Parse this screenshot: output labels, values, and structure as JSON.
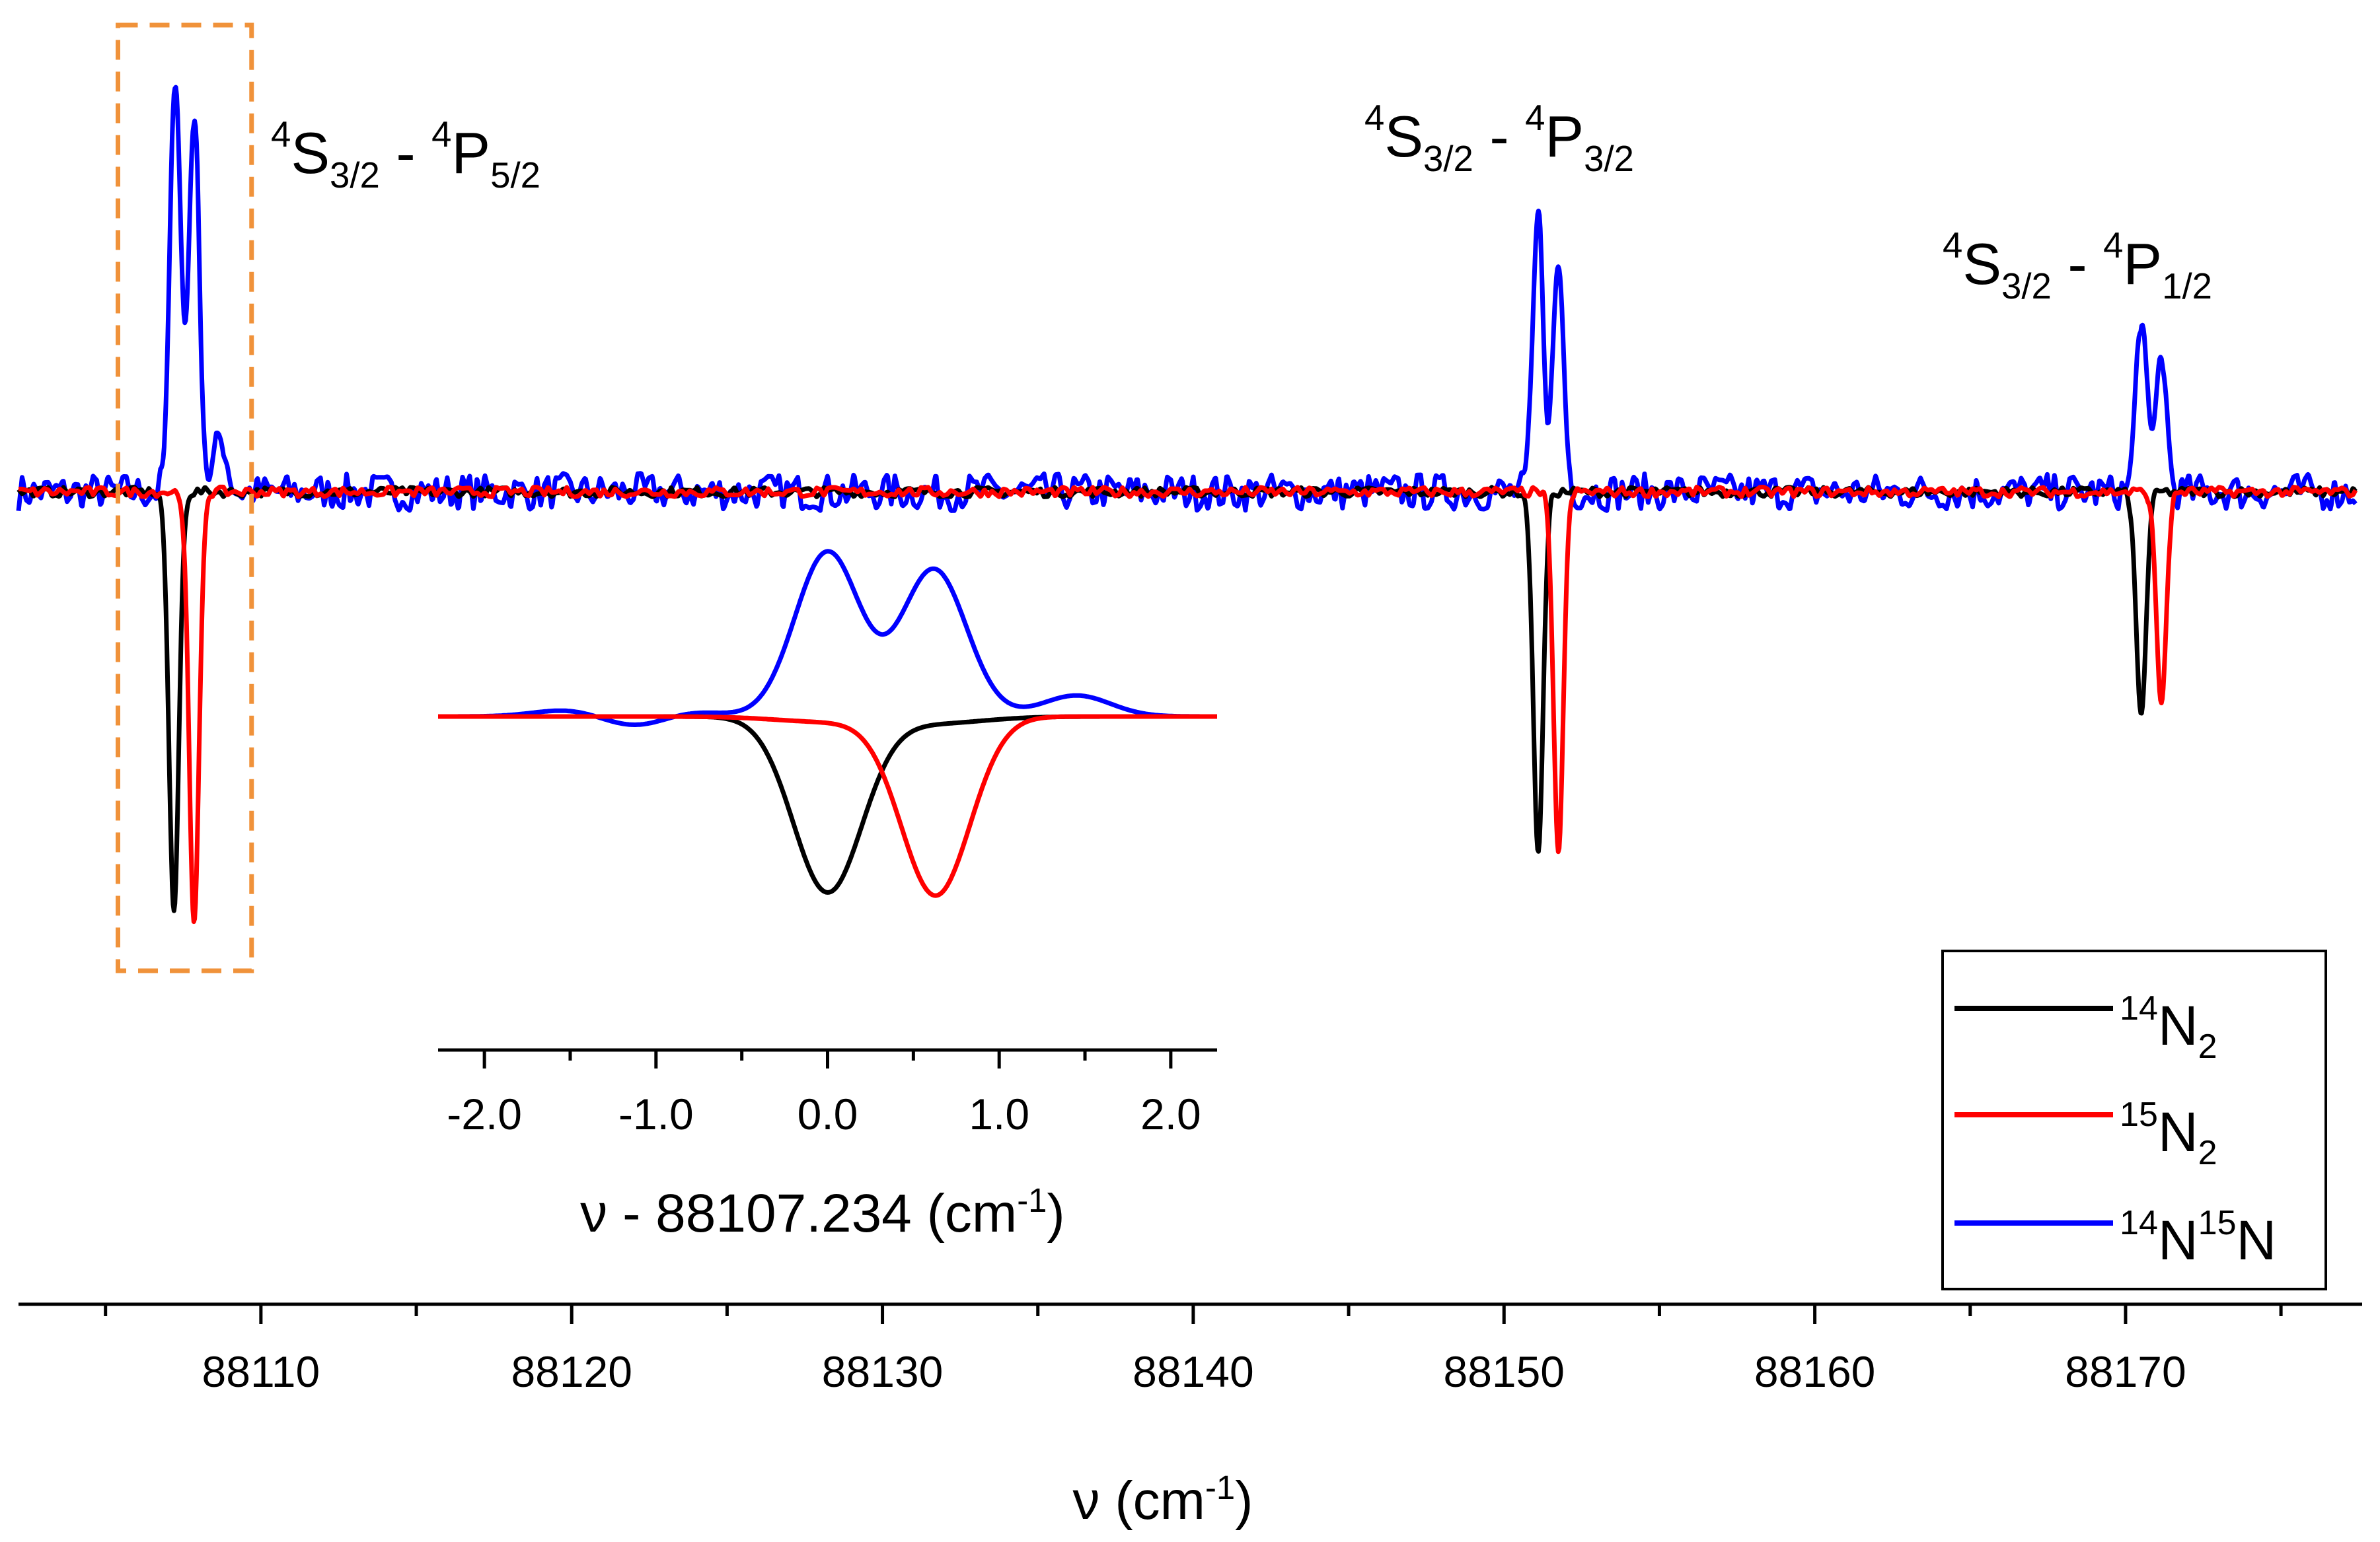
{
  "chart_data": {
    "type": "line",
    "title": "",
    "xlabel": "ν (cm⁻¹)",
    "xlabel_parts": {
      "main": "ν (cm",
      "sup": "-1",
      "close": ")"
    },
    "ylabel": "",
    "xlim": [
      88102.2,
      88177.4
    ],
    "ylim": [
      -1.0,
      1.0
    ],
    "x_ticks": [
      88110,
      88120,
      88130,
      88140,
      88150,
      88160,
      88170
    ],
    "x_tick_labels": [
      "88110",
      "88120",
      "88130",
      "88140",
      "88150",
      "88160",
      "88170"
    ],
    "x_minor_step": 5,
    "baseline": 0,
    "series": [
      {
        "name": "14N2",
        "color": "#000000",
        "peaks": [
          {
            "x": 88107.2,
            "amp": -1.0,
            "width": 0.16
          },
          {
            "x": 88151.1,
            "amp": -0.85,
            "width": 0.16
          },
          {
            "x": 88170.5,
            "amp": -0.53,
            "width": 0.16
          }
        ],
        "noise": 0.012
      },
      {
        "name": "15N2",
        "color": "#ff0000",
        "peaks": [
          {
            "x": 88107.85,
            "amp": -1.03,
            "width": 0.16
          },
          {
            "x": 88151.75,
            "amp": -0.85,
            "width": 0.16
          },
          {
            "x": 88171.15,
            "amp": -0.5,
            "width": 0.16
          }
        ],
        "noise": 0.012
      },
      {
        "name": "14N15N",
        "color": "#0000ff",
        "peaks": [
          {
            "x": 88107.25,
            "amp": 1.0,
            "width": 0.17
          },
          {
            "x": 88107.85,
            "amp": 0.9,
            "width": 0.17
          },
          {
            "x": 88108.7,
            "amp": 0.13,
            "width": 0.2
          },
          {
            "x": 88151.1,
            "amp": 0.65,
            "width": 0.17
          },
          {
            "x": 88151.75,
            "amp": 0.54,
            "width": 0.17
          },
          {
            "x": 88170.5,
            "amp": 0.42,
            "width": 0.17
          },
          {
            "x": 88171.15,
            "amp": 0.33,
            "width": 0.17
          }
        ],
        "noise": 0.045
      }
    ],
    "transitions": [
      {
        "main1": "S",
        "sub1": "3/2",
        "main2": "P",
        "sub2": "5/2",
        "pre": "4",
        "dash": " - "
      },
      {
        "main1": "S",
        "sub1": "3/2",
        "main2": "P",
        "sub2": "3/2",
        "pre": "4",
        "dash": " - "
      },
      {
        "main1": "S",
        "sub1": "3/2",
        "main2": "P",
        "sub2": "1/2",
        "pre": "4",
        "dash": " - "
      }
    ],
    "legend": [
      {
        "sup1": "14",
        "main1": "N",
        "sub1": "2",
        "sup2": "",
        "main2": "",
        "color": "#000000"
      },
      {
        "sup1": "15",
        "main1": "N",
        "sub1": "2",
        "sup2": "",
        "main2": "",
        "color": "#ff0000"
      },
      {
        "sup1": "14",
        "main1": "N",
        "sub1": "",
        "sup2": "15",
        "main2": "N",
        "color": "#0000ff"
      }
    ],
    "legend_position": "bottom-right",
    "highlight_box": {
      "x_range": [
        88105.4,
        88109.7
      ],
      "color": "#f0923a",
      "style": "dashed"
    },
    "inset": {
      "type": "line",
      "xlabel_parts": {
        "main": "ν - 88107.234 (cm",
        "sup": "-1",
        "close": ")"
      },
      "xlim": [
        -2.27,
        2.27
      ],
      "ylim": [
        -1.0,
        1.0
      ],
      "x_ticks": [
        -2.0,
        -1.0,
        0.0,
        1.0,
        2.0
      ],
      "x_tick_labels": [
        "-2.0",
        "-1.0",
        "0.0",
        "1.0",
        "2.0"
      ],
      "x_minor_step": 0.5,
      "series": [
        {
          "name": "14N2",
          "color": "#000000",
          "peaks": [
            {
              "x": 0.0,
              "amp": -1.0,
              "width": 0.2
            },
            {
              "x": 0.6,
              "amp": -0.04,
              "width": 0.3
            }
          ]
        },
        {
          "name": "15N2",
          "color": "#ff0000",
          "peaks": [
            {
              "x": 0.63,
              "amp": -1.02,
              "width": 0.2
            },
            {
              "x": 0.0,
              "amp": -0.03,
              "width": 0.3
            }
          ]
        },
        {
          "name": "14N15N",
          "color": "#0000ff",
          "peaks": [
            {
              "x": 0.0,
              "amp": 0.94,
              "width": 0.19
            },
            {
              "x": 0.62,
              "amp": 0.84,
              "width": 0.19
            },
            {
              "x": 1.45,
              "amp": 0.12,
              "width": 0.2
            },
            {
              "x": -1.1,
              "amp": -0.07,
              "width": 0.2
            },
            {
              "x": -0.85,
              "amp": 0.04,
              "width": 0.2
            },
            {
              "x": -1.5,
              "amp": 0.04,
              "width": 0.2
            }
          ]
        }
      ]
    }
  }
}
